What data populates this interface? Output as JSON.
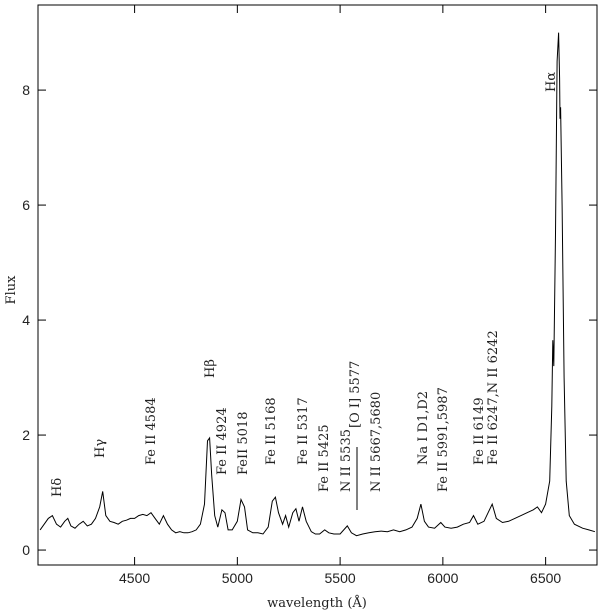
{
  "chart_data": {
    "type": "line",
    "xlabel": "wavelength (Å)",
    "ylabel": "Flux",
    "x": [
      4040,
      4060,
      4080,
      4100,
      4120,
      4140,
      4160,
      4175,
      4190,
      4210,
      4230,
      4250,
      4270,
      4290,
      4310,
      4330,
      4345,
      4360,
      4380,
      4400,
      4420,
      4440,
      4460,
      4480,
      4500,
      4520,
      4540,
      4560,
      4580,
      4600,
      4620,
      4640,
      4660,
      4680,
      4700,
      4720,
      4740,
      4760,
      4780,
      4800,
      4820,
      4840,
      4855,
      4865,
      4875,
      4890,
      4905,
      4925,
      4940,
      4955,
      4975,
      5000,
      5018,
      5035,
      5050,
      5075,
      5100,
      5125,
      5150,
      5170,
      5185,
      5200,
      5220,
      5235,
      5250,
      5270,
      5285,
      5300,
      5317,
      5335,
      5360,
      5380,
      5400,
      5425,
      5445,
      5470,
      5500,
      5535,
      5555,
      5580,
      5610,
      5640,
      5670,
      5700,
      5730,
      5760,
      5790,
      5820,
      5850,
      5875,
      5893,
      5910,
      5930,
      5960,
      5990,
      6010,
      6040,
      6070,
      6100,
      6130,
      6149,
      6170,
      6200,
      6220,
      6240,
      6260,
      6290,
      6320,
      6350,
      6380,
      6410,
      6440,
      6460,
      6480,
      6500,
      6520,
      6530,
      6535,
      6540,
      6548,
      6556,
      6563,
      6568,
      6570,
      6573,
      6580,
      6590,
      6600,
      6615,
      6640,
      6680,
      6710,
      6740
    ],
    "values": [
      0.35,
      0.45,
      0.55,
      0.6,
      0.45,
      0.4,
      0.5,
      0.55,
      0.42,
      0.38,
      0.45,
      0.5,
      0.42,
      0.45,
      0.55,
      0.75,
      1.02,
      0.6,
      0.5,
      0.48,
      0.45,
      0.5,
      0.52,
      0.55,
      0.55,
      0.6,
      0.62,
      0.6,
      0.65,
      0.55,
      0.45,
      0.6,
      0.45,
      0.35,
      0.3,
      0.32,
      0.3,
      0.3,
      0.32,
      0.35,
      0.45,
      0.8,
      1.9,
      1.95,
      1.3,
      0.6,
      0.4,
      0.7,
      0.65,
      0.35,
      0.35,
      0.5,
      0.88,
      0.75,
      0.35,
      0.3,
      0.3,
      0.28,
      0.4,
      0.85,
      0.92,
      0.65,
      0.45,
      0.6,
      0.4,
      0.65,
      0.72,
      0.5,
      0.75,
      0.5,
      0.32,
      0.28,
      0.28,
      0.35,
      0.3,
      0.28,
      0.28,
      0.42,
      0.3,
      0.25,
      0.28,
      0.3,
      0.32,
      0.33,
      0.32,
      0.35,
      0.32,
      0.35,
      0.4,
      0.55,
      0.8,
      0.5,
      0.4,
      0.38,
      0.48,
      0.4,
      0.38,
      0.4,
      0.45,
      0.48,
      0.6,
      0.45,
      0.5,
      0.65,
      0.8,
      0.55,
      0.48,
      0.5,
      0.55,
      0.6,
      0.65,
      0.7,
      0.75,
      0.65,
      0.8,
      1.2,
      2.5,
      3.65,
      3.2,
      5.5,
      8.5,
      9.0,
      8.2,
      7.5,
      7.7,
      6.0,
      3.0,
      1.2,
      0.6,
      0.45,
      0.38,
      0.35,
      0.32
    ],
    "color": "#000000",
    "xlim": [
      4030,
      6750
    ],
    "xticks": [
      4500,
      5000,
      5500,
      6000,
      6500
    ],
    "ylim": [
      -0.26,
      9.48
    ],
    "yticks": [
      0,
      2,
      4,
      6,
      8
    ],
    "annotations": [
      "Hδ",
      "Hγ",
      "Fe II 4584",
      "Hβ",
      "Fe II 4924",
      "FeII 5018",
      "Fe II 5168",
      "Fe II 5317",
      "Fe II 5425",
      "N II 5535",
      "[O I] 5577",
      "N II 5667,5680",
      "Na I D1,D2",
      "Fe II 5991,5987",
      "Fe II 6149",
      "Fe II 6247,N II 6242",
      "Hα"
    ]
  }
}
